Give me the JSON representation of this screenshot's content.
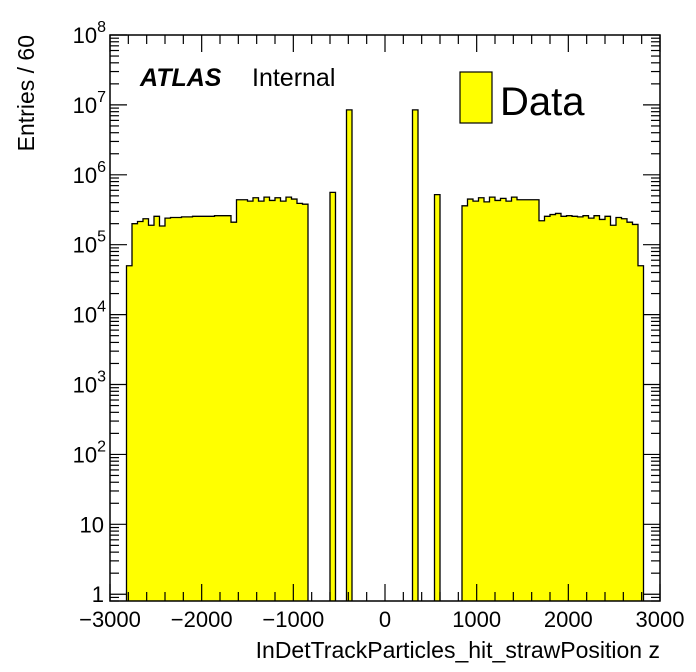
{
  "chart_data": {
    "type": "bar",
    "title": "",
    "xlabel": "InDetTrackParticles_hit_strawPosition z",
    "ylabel": "Entries / 60",
    "label_experiment": "ATLAS",
    "label_status": "Internal",
    "xlim": [
      -3000,
      3000
    ],
    "ylim": [
      0.8,
      100000000
    ],
    "yscale": "log",
    "bin_width": 60,
    "fill_color": "#ffff00",
    "edge_color": "#000000",
    "grid": false,
    "legend_position": "top-right",
    "xticks": [
      {
        "value": -3000,
        "label": "−3000"
      },
      {
        "value": -2000,
        "label": "−2000"
      },
      {
        "value": -1000,
        "label": "−1000"
      },
      {
        "value": 0,
        "label": "0"
      },
      {
        "value": 1000,
        "label": "1000"
      },
      {
        "value": 2000,
        "label": "2000"
      },
      {
        "value": 3000,
        "label": "3000"
      }
    ],
    "yticks": [
      {
        "value": 1,
        "base": "1",
        "exp": ""
      },
      {
        "value": 10,
        "base": "10",
        "exp": ""
      },
      {
        "value": 100,
        "base": "10",
        "exp": "2"
      },
      {
        "value": 1000,
        "base": "10",
        "exp": "3"
      },
      {
        "value": 10000,
        "base": "10",
        "exp": "4"
      },
      {
        "value": 100000,
        "base": "10",
        "exp": "5"
      },
      {
        "value": 1000000,
        "base": "10",
        "exp": "6"
      },
      {
        "value": 10000000,
        "base": "10",
        "exp": "7"
      },
      {
        "value": 100000000,
        "base": "10",
        "exp": "8"
      }
    ],
    "series": [
      {
        "name": "Data",
        "bins": [
          {
            "x0": -2820,
            "x1": -2760,
            "y": 50000
          },
          {
            "x0": -2760,
            "x1": -2700,
            "y": 200000
          },
          {
            "x0": -2700,
            "x1": -2640,
            "y": 215000
          },
          {
            "x0": -2640,
            "x1": -2580,
            "y": 235000
          },
          {
            "x0": -2580,
            "x1": -2520,
            "y": 190000
          },
          {
            "x0": -2520,
            "x1": -2460,
            "y": 255000
          },
          {
            "x0": -2460,
            "x1": -2400,
            "y": 185000
          },
          {
            "x0": -2400,
            "x1": -2340,
            "y": 240000
          },
          {
            "x0": -2340,
            "x1": -2280,
            "y": 245000
          },
          {
            "x0": -2280,
            "x1": -2220,
            "y": 245000
          },
          {
            "x0": -2220,
            "x1": -2160,
            "y": 250000
          },
          {
            "x0": -2160,
            "x1": -2100,
            "y": 250000
          },
          {
            "x0": -2100,
            "x1": -2040,
            "y": 255000
          },
          {
            "x0": -2040,
            "x1": -1980,
            "y": 255000
          },
          {
            "x0": -1980,
            "x1": -1920,
            "y": 255000
          },
          {
            "x0": -1920,
            "x1": -1860,
            "y": 255000
          },
          {
            "x0": -1860,
            "x1": -1800,
            "y": 260000
          },
          {
            "x0": -1800,
            "x1": -1740,
            "y": 260000
          },
          {
            "x0": -1740,
            "x1": -1680,
            "y": 260000
          },
          {
            "x0": -1680,
            "x1": -1620,
            "y": 210000
          },
          {
            "x0": -1620,
            "x1": -1560,
            "y": 440000
          },
          {
            "x0": -1560,
            "x1": -1500,
            "y": 440000
          },
          {
            "x0": -1500,
            "x1": -1440,
            "y": 420000
          },
          {
            "x0": -1440,
            "x1": -1380,
            "y": 470000
          },
          {
            "x0": -1380,
            "x1": -1320,
            "y": 420000
          },
          {
            "x0": -1320,
            "x1": -1260,
            "y": 480000
          },
          {
            "x0": -1260,
            "x1": -1200,
            "y": 430000
          },
          {
            "x0": -1200,
            "x1": -1140,
            "y": 470000
          },
          {
            "x0": -1140,
            "x1": -1080,
            "y": 420000
          },
          {
            "x0": -1080,
            "x1": -1020,
            "y": 480000
          },
          {
            "x0": -1020,
            "x1": -960,
            "y": 450000
          },
          {
            "x0": -960,
            "x1": -900,
            "y": 390000
          },
          {
            "x0": -900,
            "x1": -840,
            "y": 380000
          },
          {
            "x0": -600,
            "x1": -540,
            "y": 560000
          },
          {
            "x0": -420,
            "x1": -360,
            "y": 8500000
          },
          {
            "x0": 300,
            "x1": 360,
            "y": 8500000
          },
          {
            "x0": 540,
            "x1": 600,
            "y": 520000
          },
          {
            "x0": 840,
            "x1": 900,
            "y": 360000
          },
          {
            "x0": 900,
            "x1": 960,
            "y": 450000
          },
          {
            "x0": 960,
            "x1": 1020,
            "y": 420000
          },
          {
            "x0": 1020,
            "x1": 1080,
            "y": 470000
          },
          {
            "x0": 1080,
            "x1": 1140,
            "y": 410000
          },
          {
            "x0": 1140,
            "x1": 1200,
            "y": 480000
          },
          {
            "x0": 1200,
            "x1": 1260,
            "y": 430000
          },
          {
            "x0": 1260,
            "x1": 1320,
            "y": 460000
          },
          {
            "x0": 1320,
            "x1": 1380,
            "y": 420000
          },
          {
            "x0": 1380,
            "x1": 1440,
            "y": 480000
          },
          {
            "x0": 1440,
            "x1": 1500,
            "y": 440000
          },
          {
            "x0": 1500,
            "x1": 1560,
            "y": 440000
          },
          {
            "x0": 1560,
            "x1": 1620,
            "y": 440000
          },
          {
            "x0": 1620,
            "x1": 1680,
            "y": 440000
          },
          {
            "x0": 1680,
            "x1": 1740,
            "y": 220000
          },
          {
            "x0": 1740,
            "x1": 1800,
            "y": 255000
          },
          {
            "x0": 1800,
            "x1": 1860,
            "y": 270000
          },
          {
            "x0": 1860,
            "x1": 1920,
            "y": 280000
          },
          {
            "x0": 1920,
            "x1": 1980,
            "y": 255000
          },
          {
            "x0": 1980,
            "x1": 2040,
            "y": 260000
          },
          {
            "x0": 2040,
            "x1": 2100,
            "y": 255000
          },
          {
            "x0": 2100,
            "x1": 2160,
            "y": 250000
          },
          {
            "x0": 2160,
            "x1": 2220,
            "y": 260000
          },
          {
            "x0": 2220,
            "x1": 2280,
            "y": 240000
          },
          {
            "x0": 2280,
            "x1": 2340,
            "y": 260000
          },
          {
            "x0": 2340,
            "x1": 2400,
            "y": 230000
          },
          {
            "x0": 2400,
            "x1": 2460,
            "y": 255000
          },
          {
            "x0": 2460,
            "x1": 2520,
            "y": 190000
          },
          {
            "x0": 2520,
            "x1": 2580,
            "y": 245000
          },
          {
            "x0": 2580,
            "x1": 2640,
            "y": 235000
          },
          {
            "x0": 2640,
            "x1": 2700,
            "y": 210000
          },
          {
            "x0": 2700,
            "x1": 2760,
            "y": 195000
          },
          {
            "x0": 2760,
            "x1": 2820,
            "y": 50000
          }
        ]
      }
    ]
  }
}
